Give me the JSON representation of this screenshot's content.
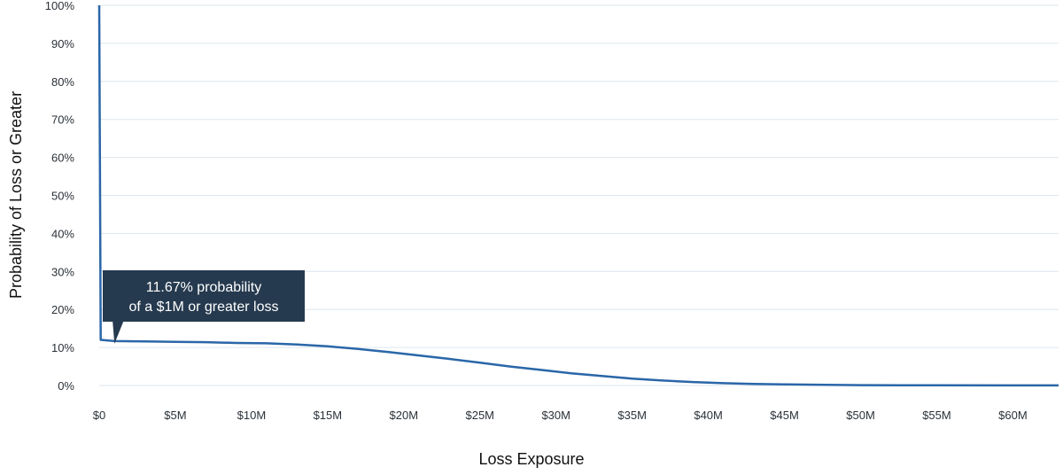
{
  "chart_data": {
    "type": "line",
    "xlabel": "Loss Exposure",
    "ylabel": "Probability of Loss or Greater",
    "xlim": [
      0,
      63
    ],
    "ylim": [
      0,
      100
    ],
    "x_ticks": [
      {
        "value": 0,
        "label": "$0"
      },
      {
        "value": 5,
        "label": "$5M"
      },
      {
        "value": 10,
        "label": "$10M"
      },
      {
        "value": 15,
        "label": "$15M"
      },
      {
        "value": 20,
        "label": "$20M"
      },
      {
        "value": 25,
        "label": "$25M"
      },
      {
        "value": 30,
        "label": "$30M"
      },
      {
        "value": 35,
        "label": "$35M"
      },
      {
        "value": 40,
        "label": "$40M"
      },
      {
        "value": 45,
        "label": "$45M"
      },
      {
        "value": 50,
        "label": "$50M"
      },
      {
        "value": 55,
        "label": "$55M"
      },
      {
        "value": 60,
        "label": "$60M"
      }
    ],
    "y_ticks": [
      {
        "value": 0,
        "label": "0%"
      },
      {
        "value": 10,
        "label": "10%"
      },
      {
        "value": 20,
        "label": "20%"
      },
      {
        "value": 30,
        "label": "30%"
      },
      {
        "value": 40,
        "label": "40%"
      },
      {
        "value": 50,
        "label": "50%"
      },
      {
        "value": 60,
        "label": "60%"
      },
      {
        "value": 70,
        "label": "70%"
      },
      {
        "value": 80,
        "label": "80%"
      },
      {
        "value": 90,
        "label": "90%"
      },
      {
        "value": 100,
        "label": "100%"
      }
    ],
    "grid": true,
    "series": [
      {
        "color": "#2a66a8",
        "points": [
          [
            0,
            100
          ],
          [
            0.1,
            12
          ],
          [
            1,
            11.67
          ],
          [
            3,
            11.6
          ],
          [
            5,
            11.5
          ],
          [
            7,
            11.4
          ],
          [
            9,
            11.2
          ],
          [
            11,
            11.1
          ],
          [
            13,
            10.8
          ],
          [
            15,
            10.3
          ],
          [
            17,
            9.6
          ],
          [
            19,
            8.8
          ],
          [
            21,
            7.9
          ],
          [
            23,
            7.0
          ],
          [
            25,
            6.0
          ],
          [
            27,
            5.0
          ],
          [
            29,
            4.1
          ],
          [
            31,
            3.2
          ],
          [
            33,
            2.5
          ],
          [
            35,
            1.8
          ],
          [
            37,
            1.3
          ],
          [
            39,
            0.9
          ],
          [
            41,
            0.6
          ],
          [
            43,
            0.4
          ],
          [
            45,
            0.3
          ],
          [
            47,
            0.2
          ],
          [
            50,
            0.1
          ],
          [
            55,
            0.05
          ],
          [
            60,
            0.03
          ],
          [
            63,
            0.02
          ]
        ]
      }
    ],
    "annotation": {
      "line1": "11.67% probability",
      "line2": "of a $1M or greater loss",
      "x": 1,
      "y": 11.67
    }
  }
}
